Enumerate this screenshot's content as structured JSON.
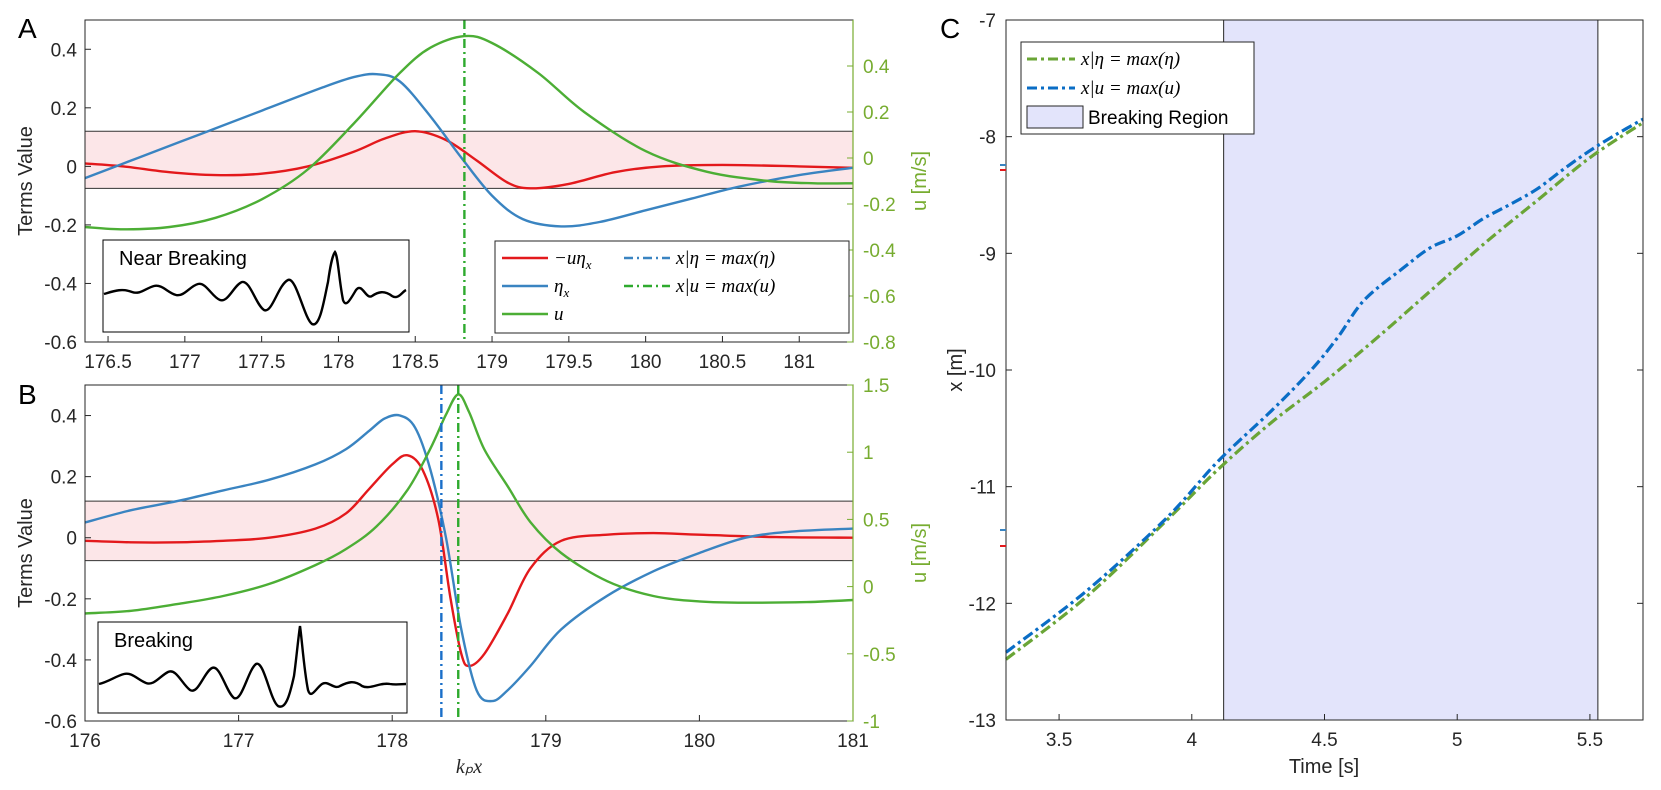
{
  "colors": {
    "red": "#e3191c",
    "blue": "#3a84c1",
    "green": "#4cae35",
    "dash_green": "#2eaa2e",
    "dash_blue": "#1a6fc9",
    "legend_green": "#6aa536",
    "legend_blue": "#0a6dc5",
    "band": "#fce6e8",
    "breaking_region": "#e3e4fb",
    "axis_green": "#77ac30"
  },
  "chart_data": [
    {
      "id": "A",
      "panel_label": "A",
      "type": "line",
      "xlim": [
        176.35,
        181.35
      ],
      "ylim": [
        -0.6,
        0.5
      ],
      "y2lim": [
        -0.8,
        0.6
      ],
      "xticks": [
        176.5,
        177,
        177.5,
        178,
        178.5,
        179,
        179.5,
        180,
        180.5,
        181
      ],
      "xtick_labels": [
        "176.5",
        "177",
        "177.5",
        "178",
        "178.5",
        "179",
        "179.5",
        "180",
        "180.5",
        "181"
      ],
      "yticks": [
        -0.6,
        -0.4,
        -0.2,
        0,
        0.2,
        0.4
      ],
      "ytick_labels": [
        "-0.6",
        "-0.4",
        "-0.2",
        "0",
        "0.2",
        "0.4"
      ],
      "y2ticks": [
        -0.8,
        -0.6,
        -0.4,
        -0.2,
        0,
        0.2,
        0.4
      ],
      "y2tick_labels": [
        "-0.8",
        "-0.6",
        "-0.4",
        "-0.2",
        "0",
        "0.2",
        "0.4"
      ],
      "ylabel": "Terms Value",
      "y2label": "u [m/s]",
      "band": [
        -0.075,
        0.12
      ],
      "vlines": [
        {
          "x": 178.82,
          "color": "dash_green"
        }
      ],
      "inset_label": "Near Breaking",
      "series": [
        {
          "name": "red",
          "axis": "y1",
          "color": "red",
          "x": [
            176.35,
            176.6,
            176.9,
            177.2,
            177.5,
            177.8,
            178.1,
            178.3,
            178.5,
            178.7,
            178.9,
            179.1,
            179.25,
            179.5,
            179.8,
            180.1,
            180.5,
            181,
            181.35
          ],
          "y": [
            0.01,
            0.0,
            -0.02,
            -0.03,
            -0.025,
            0.0,
            0.05,
            0.095,
            0.12,
            0.09,
            0.02,
            -0.055,
            -0.075,
            -0.06,
            -0.02,
            0.0,
            0.005,
            0.0,
            -0.005
          ]
        },
        {
          "name": "blue",
          "axis": "y1",
          "color": "blue",
          "x": [
            176.35,
            176.7,
            177.1,
            177.5,
            177.9,
            178.1,
            178.25,
            178.4,
            178.6,
            178.8,
            179.0,
            179.2,
            179.45,
            179.7,
            180.0,
            180.3,
            180.6,
            181.0,
            181.35
          ],
          "y": [
            -0.04,
            0.03,
            0.11,
            0.19,
            0.27,
            0.305,
            0.315,
            0.29,
            0.17,
            0.03,
            -0.1,
            -0.18,
            -0.205,
            -0.19,
            -0.15,
            -0.11,
            -0.07,
            -0.03,
            -0.005
          ]
        },
        {
          "name": "green",
          "axis": "y2",
          "color": "green",
          "x": [
            176.35,
            176.6,
            176.9,
            177.2,
            177.5,
            177.8,
            178.1,
            178.4,
            178.6,
            178.82,
            179.0,
            179.3,
            179.6,
            180.0,
            180.4,
            180.8,
            181.1,
            181.35
          ],
          "y": [
            -0.3,
            -0.31,
            -0.3,
            -0.26,
            -0.18,
            -0.05,
            0.15,
            0.37,
            0.48,
            0.53,
            0.5,
            0.37,
            0.2,
            0.03,
            -0.06,
            -0.1,
            -0.11,
            -0.11
          ]
        }
      ],
      "legend": [
        {
          "label": "−uη",
          "sub": "x",
          "style": "solid",
          "color": "red"
        },
        {
          "label": "x|η = max(η)",
          "style": "dashdot",
          "color": "blue"
        },
        {
          "label": "η",
          "sub": "x",
          "style": "solid",
          "color": "blue"
        },
        {
          "label": "x|u = max(u)",
          "style": "dashdot",
          "color": "dash_green"
        },
        {
          "label": "u",
          "style": "solid",
          "color": "green"
        }
      ]
    },
    {
      "id": "B",
      "panel_label": "B",
      "type": "line",
      "xlim": [
        176,
        181
      ],
      "ylim": [
        -0.6,
        0.5
      ],
      "y2lim": [
        -1,
        1.5
      ],
      "xticks": [
        176,
        177,
        178,
        179,
        180,
        181
      ],
      "xtick_labels": [
        "176",
        "177",
        "178",
        "179",
        "180",
        "181"
      ],
      "yticks": [
        -0.6,
        -0.4,
        -0.2,
        0,
        0.2,
        0.4
      ],
      "ytick_labels": [
        "-0.6",
        "-0.4",
        "-0.2",
        "0",
        "0.2",
        "0.4"
      ],
      "y2ticks": [
        -1,
        -0.5,
        0,
        0.5,
        1,
        1.5
      ],
      "y2tick_labels": [
        "-1",
        "-0.5",
        "0",
        "0.5",
        "1",
        "1.5"
      ],
      "ylabel": "Terms Value",
      "y2label": "u [m/s]",
      "xlabel": "kₚx",
      "band": [
        -0.075,
        0.12
      ],
      "vlines": [
        {
          "x": 178.32,
          "color": "dash_blue"
        },
        {
          "x": 178.43,
          "color": "dash_green"
        }
      ],
      "inset_label": "Breaking",
      "series": [
        {
          "name": "red",
          "axis": "y1",
          "color": "red",
          "x": [
            176,
            176.3,
            176.6,
            176.9,
            177.2,
            177.5,
            177.7,
            177.85,
            178.0,
            178.1,
            178.2,
            178.3,
            178.38,
            178.45,
            178.5,
            178.6,
            178.75,
            178.9,
            179.1,
            179.4,
            179.7,
            180.0,
            180.5,
            181
          ],
          "y": [
            -0.01,
            -0.015,
            -0.015,
            -0.01,
            0.0,
            0.03,
            0.08,
            0.16,
            0.24,
            0.27,
            0.22,
            0.06,
            -0.2,
            -0.38,
            -0.42,
            -0.38,
            -0.25,
            -0.1,
            -0.01,
            0.01,
            0.015,
            0.01,
            0.002,
            0.0
          ]
        },
        {
          "name": "blue",
          "axis": "y1",
          "color": "blue",
          "x": [
            176,
            176.3,
            176.6,
            176.9,
            177.2,
            177.5,
            177.7,
            177.85,
            177.95,
            178.05,
            178.15,
            178.25,
            178.35,
            178.45,
            178.55,
            178.65,
            178.75,
            178.9,
            179.1,
            179.4,
            179.7,
            180.0,
            180.3,
            180.6,
            181
          ],
          "y": [
            0.05,
            0.09,
            0.12,
            0.155,
            0.19,
            0.24,
            0.29,
            0.35,
            0.39,
            0.4,
            0.36,
            0.22,
            0.0,
            -0.3,
            -0.5,
            -0.535,
            -0.5,
            -0.42,
            -0.3,
            -0.19,
            -0.11,
            -0.05,
            0.0,
            0.02,
            0.03
          ]
        },
        {
          "name": "green",
          "axis": "y2",
          "color": "green",
          "x": [
            176,
            176.3,
            176.6,
            176.9,
            177.2,
            177.5,
            177.7,
            177.9,
            178.1,
            178.25,
            178.35,
            178.43,
            178.5,
            178.6,
            178.75,
            178.9,
            179.1,
            179.4,
            179.7,
            180.0,
            180.3,
            180.7,
            181
          ],
          "y": [
            -0.2,
            -0.18,
            -0.13,
            -0.07,
            0.02,
            0.16,
            0.28,
            0.45,
            0.72,
            1.03,
            1.28,
            1.43,
            1.3,
            1.02,
            0.75,
            0.48,
            0.25,
            0.04,
            -0.07,
            -0.11,
            -0.12,
            -0.115,
            -0.1
          ]
        }
      ],
      "inset_note": ""
    },
    {
      "id": "C",
      "panel_label": "C",
      "type": "line",
      "xlim": [
        3.3,
        5.7
      ],
      "ylim": [
        -13,
        -7
      ],
      "xticks": [
        3.5,
        4,
        4.5,
        5,
        5.5
      ],
      "xtick_labels": [
        "3.5",
        "4",
        "4.5",
        "5",
        "5.5"
      ],
      "yticks": [
        -13,
        -12,
        -11,
        -10,
        -9,
        -8,
        -7
      ],
      "ytick_labels": [
        "-13",
        "-12",
        "-11",
        "-10",
        "-9",
        "-8",
        "-7"
      ],
      "xlabel": "Time [s]",
      "ylabel": "x [m]",
      "breaking_region": [
        4.12,
        5.53
      ],
      "series": [
        {
          "name": "x_eta_max",
          "color": "legend_green",
          "x": [
            3.3,
            3.6,
            3.9,
            4.1,
            4.3,
            4.5,
            4.7,
            4.9,
            5.1,
            5.3,
            5.5,
            5.7
          ],
          "y": [
            -12.48,
            -11.95,
            -11.3,
            -10.85,
            -10.45,
            -10.1,
            -9.72,
            -9.32,
            -8.92,
            -8.55,
            -8.18,
            -7.88
          ]
        },
        {
          "name": "x_u_max",
          "color": "legend_blue",
          "x": [
            3.3,
            3.6,
            3.9,
            4.1,
            4.3,
            4.45,
            4.55,
            4.65,
            4.8,
            4.9,
            5.0,
            5.1,
            5.2,
            5.3,
            5.4,
            5.5,
            5.6,
            5.7
          ],
          "y": [
            -12.42,
            -11.9,
            -11.28,
            -10.78,
            -10.35,
            -10.0,
            -9.72,
            -9.4,
            -9.12,
            -8.95,
            -8.85,
            -8.7,
            -8.58,
            -8.45,
            -8.28,
            -8.12,
            -7.98,
            -7.85
          ]
        }
      ],
      "legend": [
        {
          "label": "x|η = max(η)",
          "style": "dashdot",
          "color": "legend_green"
        },
        {
          "label": "x|u = max(u)",
          "style": "dashdot",
          "color": "legend_blue"
        },
        {
          "label": "Breaking Region",
          "style": "patch",
          "color": "breaking_region"
        }
      ]
    }
  ]
}
